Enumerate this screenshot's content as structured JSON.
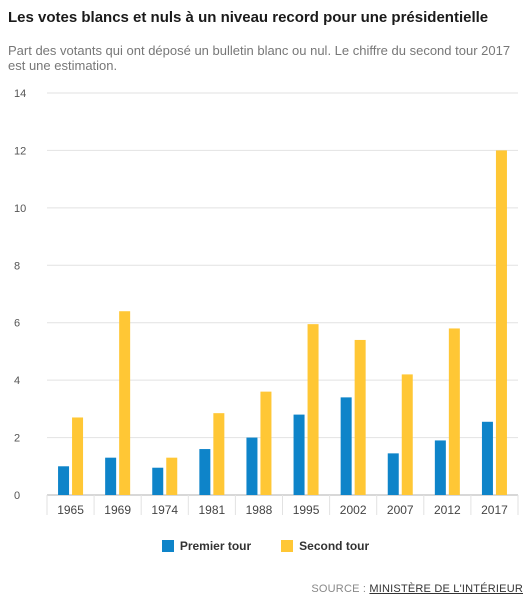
{
  "header": {
    "title": "Les votes blancs et nuls à un niveau record pour une présidentielle",
    "subtitle": "Part des votants qui ont déposé un bulletin blanc ou nul. Le chiffre du second tour 2017 est une estimation."
  },
  "colors": {
    "premier": "#0e84c9",
    "second": "#ffc735",
    "grid": "#e2e2e2",
    "axis": "#b0b0b0"
  },
  "chart_data": {
    "type": "bar",
    "title": "Les votes blancs et nuls à un niveau record pour une présidentielle",
    "subtitle": "Part des votants qui ont déposé un bulletin blanc ou nul. Le chiffre du second tour 2017 est une estimation.",
    "categories": [
      "1965",
      "1969",
      "1974",
      "1981",
      "1988",
      "1995",
      "2002",
      "2007",
      "2012",
      "2017"
    ],
    "series": [
      {
        "name": "Premier tour",
        "values": [
          1.0,
          1.3,
          0.95,
          1.6,
          2.0,
          2.8,
          3.4,
          1.45,
          1.9,
          2.55
        ]
      },
      {
        "name": "Second tour",
        "values": [
          2.7,
          6.4,
          1.3,
          2.85,
          3.6,
          5.95,
          5.4,
          4.2,
          5.8,
          12.0
        ]
      }
    ],
    "yticks": [
      0,
      2,
      4,
      6,
      8,
      10,
      12,
      14
    ],
    "ylim": [
      0,
      14
    ],
    "grid": true,
    "legend": "bottom-center"
  },
  "legend": {
    "premier_label": "Premier tour",
    "second_label": "Second tour"
  },
  "footer": {
    "source_prefix": "SOURCE : ",
    "source_link": "MINISTÈRE DE L'INTÉRIEUR"
  }
}
